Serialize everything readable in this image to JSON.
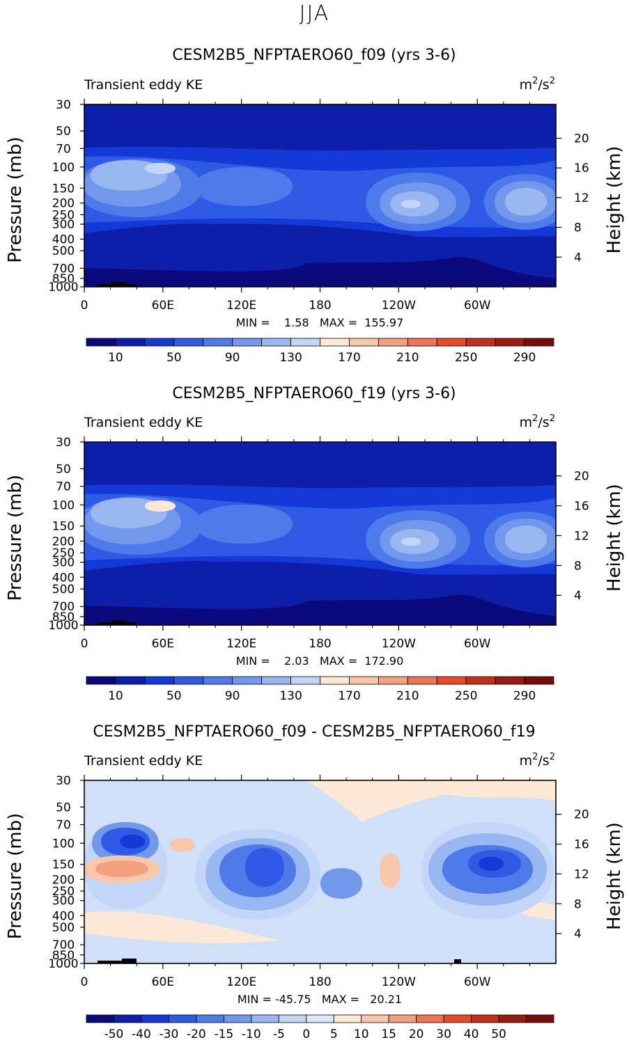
{
  "page_title": "JJA",
  "chart_data": [
    {
      "type": "heatmap",
      "title": "CESM2B5_NFPTAERO60_f09 (yrs 3-6)",
      "left_label": "Transient eddy KE",
      "units_base": "m",
      "units_exp": "2",
      "units_rest": "/s",
      "units_exp2": "2",
      "ylabel": "Pressure (mb)",
      "ylabel_right": "Height (km)",
      "pressure_ticks": [
        "30",
        "50",
        "70",
        "100",
        "150",
        "200",
        "250",
        "300",
        "400",
        "500",
        "700",
        "850",
        "1000"
      ],
      "height_ticks": [
        "20",
        "16",
        "12",
        "8",
        "4"
      ],
      "lon_ticks": [
        "0",
        "60E",
        "120E",
        "180",
        "120W",
        "60W"
      ],
      "stats": "MIN =    1.58   MAX =  155.97",
      "colorbar_labels": [
        "10",
        "50",
        "90",
        "130",
        "170",
        "210",
        "250",
        "290"
      ]
    },
    {
      "type": "heatmap",
      "title": "CESM2B5_NFPTAERO60_f19 (yrs 3-6)",
      "left_label": "Transient eddy KE",
      "units_base": "m",
      "units_exp": "2",
      "units_rest": "/s",
      "units_exp2": "2",
      "ylabel": "Pressure (mb)",
      "ylabel_right": "Height (km)",
      "pressure_ticks": [
        "30",
        "50",
        "70",
        "100",
        "150",
        "200",
        "250",
        "300",
        "400",
        "500",
        "700",
        "850",
        "1000"
      ],
      "height_ticks": [
        "20",
        "16",
        "12",
        "8",
        "4"
      ],
      "lon_ticks": [
        "0",
        "60E",
        "120E",
        "180",
        "120W",
        "60W"
      ],
      "stats": "MIN =    2.03   MAX =  172.90",
      "colorbar_labels": [
        "10",
        "50",
        "90",
        "130",
        "170",
        "210",
        "250",
        "290"
      ]
    },
    {
      "type": "heatmap",
      "title": "CESM2B5_NFPTAERO60_f09 - CESM2B5_NFPTAERO60_f19",
      "left_label": "Transient eddy KE",
      "units_base": "m",
      "units_exp": "2",
      "units_rest": "/s",
      "units_exp2": "2",
      "ylabel": "Pressure (mb)",
      "ylabel_right": "Height (km)",
      "pressure_ticks": [
        "30",
        "50",
        "70",
        "100",
        "150",
        "200",
        "250",
        "300",
        "400",
        "500",
        "700",
        "850",
        "1000"
      ],
      "height_ticks": [
        "20",
        "16",
        "12",
        "8",
        "4"
      ],
      "lon_ticks": [
        "0",
        "60E",
        "120E",
        "180",
        "120W",
        "60W"
      ],
      "stats": "MIN = -45.75   MAX =   20.21",
      "colorbar_labels": [
        "-50",
        "-40",
        "-30",
        "-20",
        "-15",
        "-10",
        "-5",
        "0",
        "5",
        "10",
        "15",
        "20",
        "30",
        "40",
        "50"
      ]
    }
  ]
}
